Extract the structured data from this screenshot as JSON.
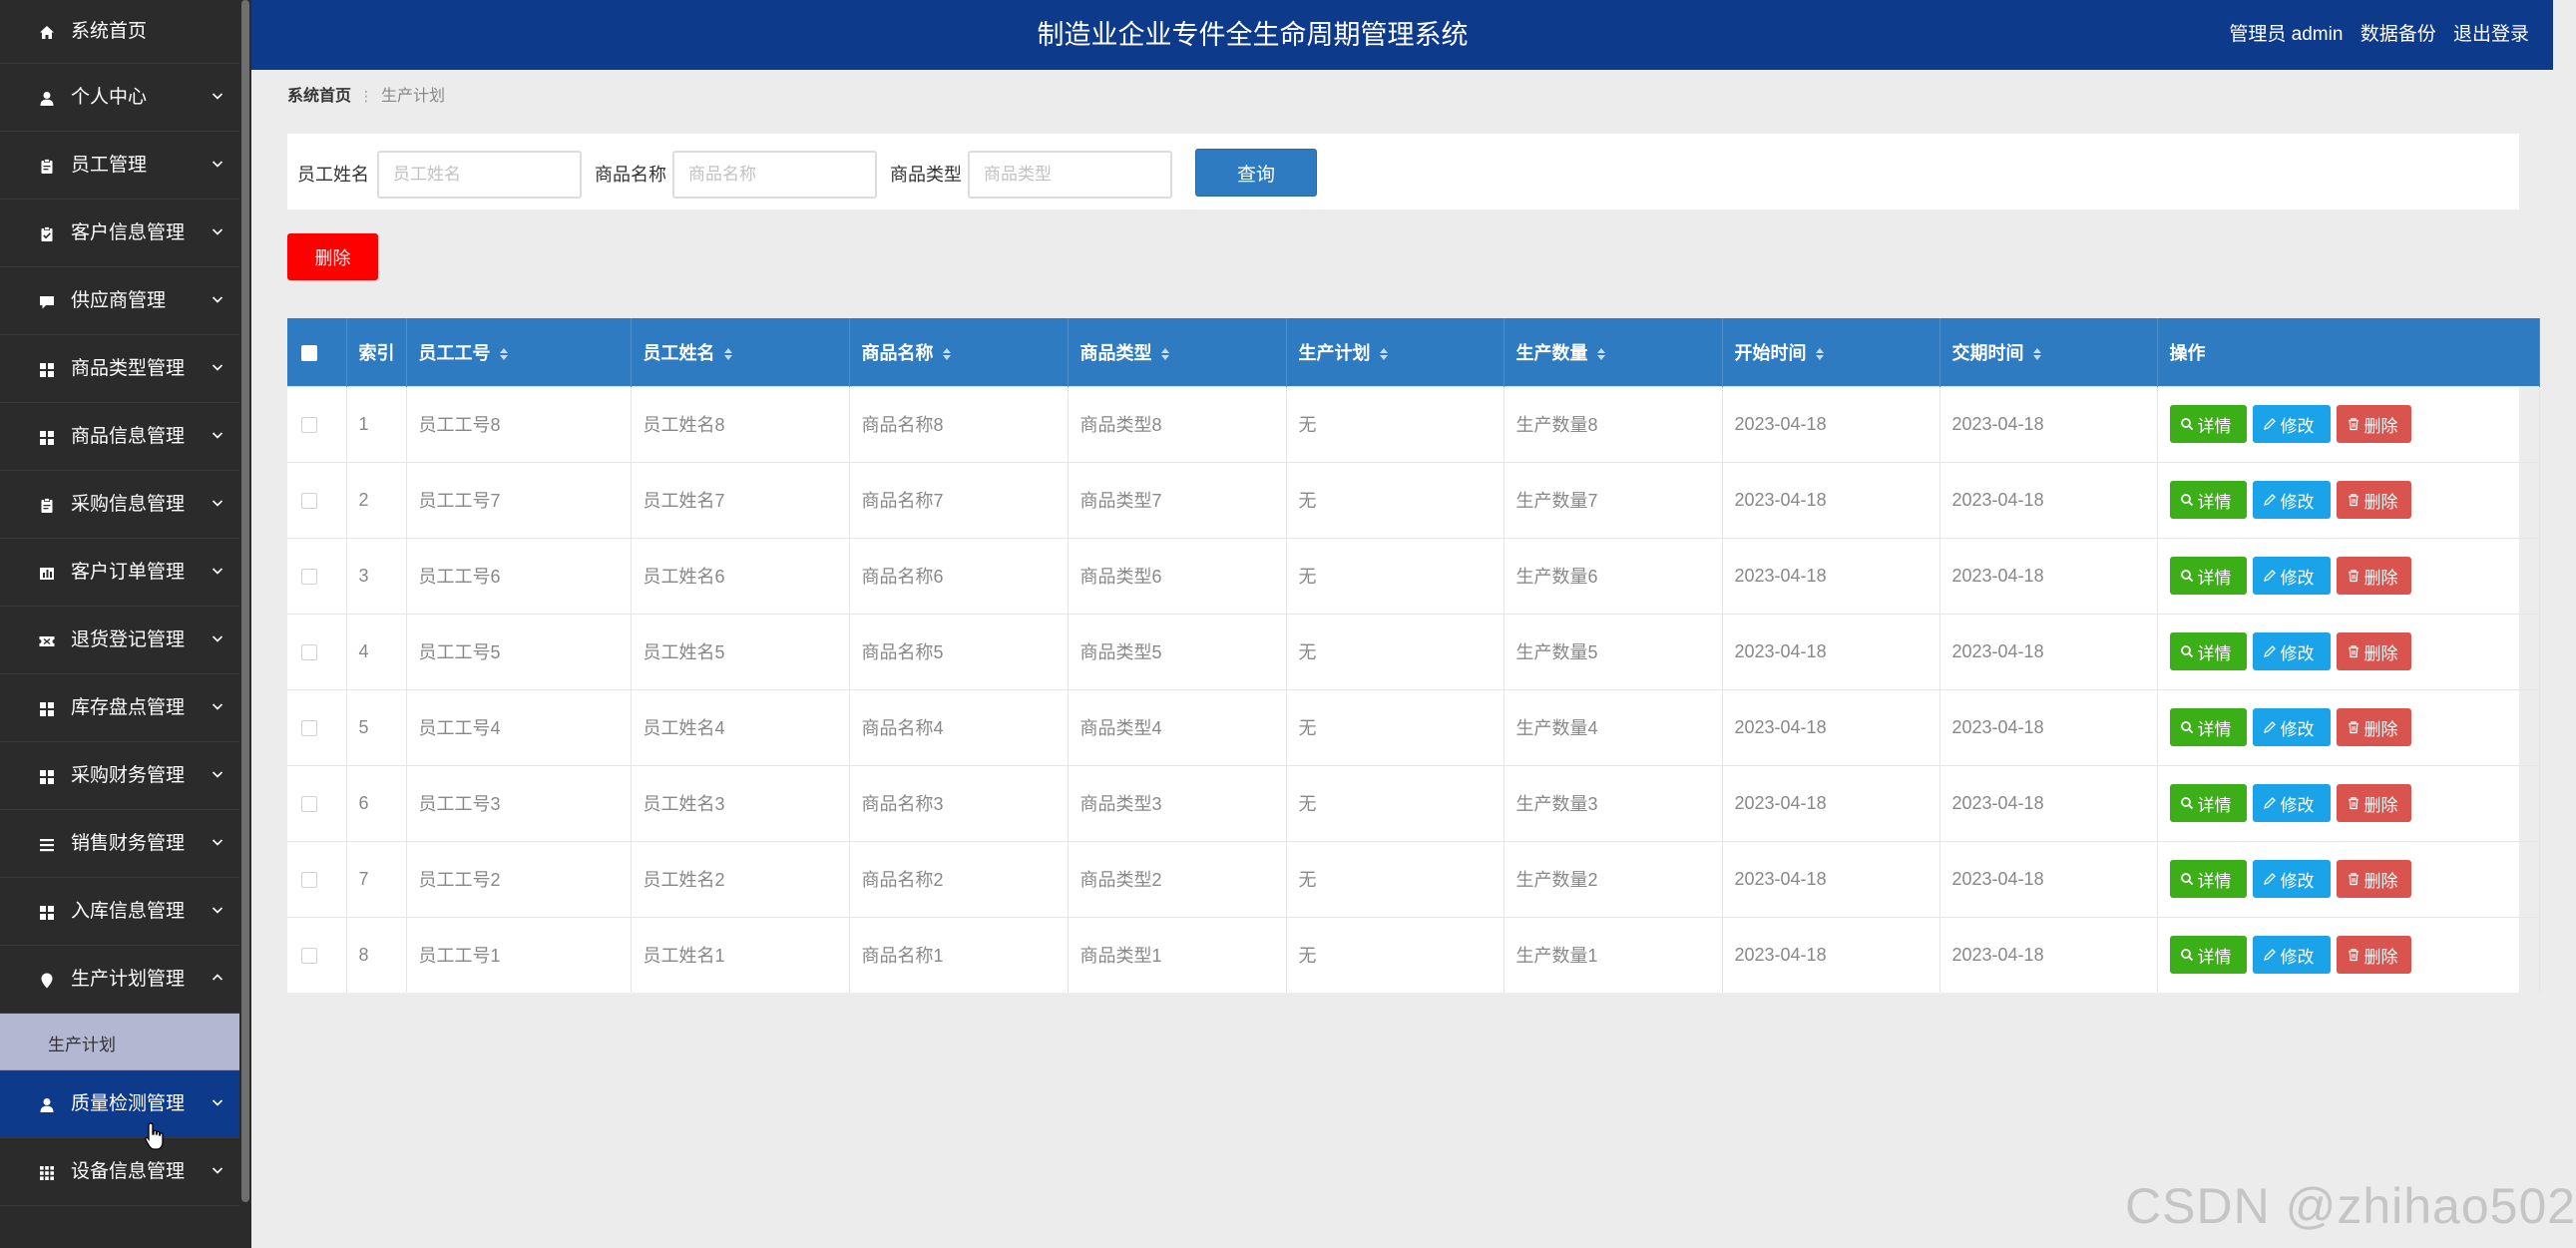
{
  "app": {
    "title": "制造业企业专件全生命周期管理系统",
    "user_label": "管理员 admin",
    "backup_label": "数据备份",
    "logout_label": "退出登录"
  },
  "sidebar": {
    "items": [
      {
        "label": "系统首页",
        "icon": "home-icon"
      },
      {
        "label": "个人中心",
        "icon": "user-icon"
      },
      {
        "label": "员工管理",
        "icon": "clipboard-icon"
      },
      {
        "label": "客户信息管理",
        "icon": "clipboard-check-icon"
      },
      {
        "label": "供应商管理",
        "icon": "chat-icon"
      },
      {
        "label": "商品类型管理",
        "icon": "grid-icon"
      },
      {
        "label": "商品信息管理",
        "icon": "grid-icon"
      },
      {
        "label": "采购信息管理",
        "icon": "clipboard-icon"
      },
      {
        "label": "客户订单管理",
        "icon": "bar-chart-icon"
      },
      {
        "label": "退货登记管理",
        "icon": "ticket-icon"
      },
      {
        "label": "库存盘点管理",
        "icon": "grid-icon"
      },
      {
        "label": "采购财务管理",
        "icon": "grid-icon"
      },
      {
        "label": "销售财务管理",
        "icon": "list-icon"
      },
      {
        "label": "入库信息管理",
        "icon": "grid-icon"
      },
      {
        "label": "生产计划管理",
        "icon": "location-pin-icon"
      },
      {
        "label": "质量检测管理",
        "icon": "user-icon"
      },
      {
        "label": "设备信息管理",
        "icon": "apps-grid-icon"
      }
    ],
    "submenu_label": "生产计划"
  },
  "breadcrumb": {
    "home": "系统首页",
    "current": "生产计划"
  },
  "search": {
    "fields": [
      {
        "label": "员工姓名",
        "placeholder": "员工姓名"
      },
      {
        "label": "商品名称",
        "placeholder": "商品名称"
      },
      {
        "label": "商品类型",
        "placeholder": "商品类型"
      }
    ],
    "query_label": "查询",
    "delete_label": "删除"
  },
  "table": {
    "headers": [
      "索引",
      "员工工号",
      "员工姓名",
      "商品名称",
      "商品类型",
      "生产计划",
      "生产数量",
      "开始时间",
      "交期时间",
      "操作"
    ],
    "actions": {
      "detail": "详情",
      "edit": "修改",
      "delete": "删除"
    },
    "rows": [
      [
        "1",
        "员工工号8",
        "员工姓名8",
        "商品名称8",
        "商品类型8",
        "无",
        "生产数量8",
        "2023-04-18",
        "2023-04-18"
      ],
      [
        "2",
        "员工工号7",
        "员工姓名7",
        "商品名称7",
        "商品类型7",
        "无",
        "生产数量7",
        "2023-04-18",
        "2023-04-18"
      ],
      [
        "3",
        "员工工号6",
        "员工姓名6",
        "商品名称6",
        "商品类型6",
        "无",
        "生产数量6",
        "2023-04-18",
        "2023-04-18"
      ],
      [
        "4",
        "员工工号5",
        "员工姓名5",
        "商品名称5",
        "商品类型5",
        "无",
        "生产数量5",
        "2023-04-18",
        "2023-04-18"
      ],
      [
        "5",
        "员工工号4",
        "员工姓名4",
        "商品名称4",
        "商品类型4",
        "无",
        "生产数量4",
        "2023-04-18",
        "2023-04-18"
      ],
      [
        "6",
        "员工工号3",
        "员工姓名3",
        "商品名称3",
        "商品类型3",
        "无",
        "生产数量3",
        "2023-04-18",
        "2023-04-18"
      ],
      [
        "7",
        "员工工号2",
        "员工姓名2",
        "商品名称2",
        "商品类型2",
        "无",
        "生产数量2",
        "2023-04-18",
        "2023-04-18"
      ],
      [
        "8",
        "员工工号1",
        "员工姓名1",
        "商品名称1",
        "商品类型1",
        "无",
        "生产数量1",
        "2023-04-18",
        "2023-04-18"
      ]
    ]
  },
  "watermark": "CSDN @zhihao502",
  "colors": {
    "header_bg": "#0e3a8c",
    "sidebar_bg": "#2b2b2b",
    "table_header_bg": "#2f7bc2",
    "detail_btn": "#3bae18",
    "edit_btn": "#1aa3e8",
    "delete_btn": "#d9534f",
    "bulk_delete_btn": "#ff0000"
  }
}
